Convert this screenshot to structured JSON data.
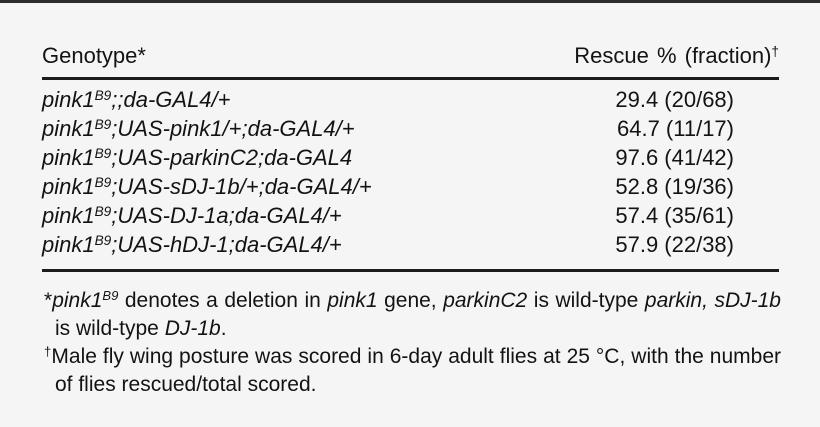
{
  "table": {
    "columns": [
      {
        "label": "Genotype*"
      },
      {
        "label": "Rescue % (fraction)",
        "sup": "†"
      }
    ],
    "rows": [
      {
        "gene": "pink1",
        "allele_sup": "B9",
        "rest": ";;da-GAL4/+",
        "value": "29.4 (20/68)"
      },
      {
        "gene": "pink1",
        "allele_sup": "B9",
        "rest": ";UAS-pink1/+;da-GAL4/+",
        "value": "64.7 (11/17)"
      },
      {
        "gene": "pink1",
        "allele_sup": "B9",
        "rest": ";UAS-parkinC2;da-GAL4",
        "value": "97.6 (41/42)"
      },
      {
        "gene": "pink1",
        "allele_sup": "B9",
        "rest": ";UAS-sDJ-1b/+;da-GAL4/+",
        "value": "52.8 (19/36)"
      },
      {
        "gene": "pink1",
        "allele_sup": "B9",
        "rest": ";UAS-DJ-1a;da-GAL4/+",
        "value": "57.4 (35/61)"
      },
      {
        "gene": "pink1",
        "allele_sup": "B9",
        "rest": ";UAS-hDJ-1;da-GAL4/+",
        "value": "57.9 (22/38)"
      }
    ]
  },
  "footnotes": [
    {
      "segments": [
        {
          "t": "*"
        },
        {
          "t": "pink1",
          "i": true
        },
        {
          "t": "B9",
          "i": true,
          "s": true
        },
        {
          "t": " denotes a deletion in "
        },
        {
          "t": "pink1",
          "i": true
        },
        {
          "t": " gene, "
        },
        {
          "t": "parkinC2",
          "i": true
        },
        {
          "t": " is wild-type "
        },
        {
          "t": "parkin,",
          "i": true
        },
        {
          "t": " "
        },
        {
          "t": "sDJ-1b",
          "i": true
        },
        {
          "t": " is wild-type "
        },
        {
          "t": "DJ-1b",
          "i": true
        },
        {
          "t": "."
        }
      ]
    },
    {
      "segments": [
        {
          "t": "†",
          "s": true
        },
        {
          "t": "Male fly wing posture was scored in 6-day adult flies at 25 °C, with the number of flies rescued/total scored."
        }
      ]
    }
  ],
  "colors": {
    "background": "#f5f5f5",
    "text": "#131313",
    "rule": "#1c1c1c",
    "top_bar": "#2d2d2d"
  }
}
